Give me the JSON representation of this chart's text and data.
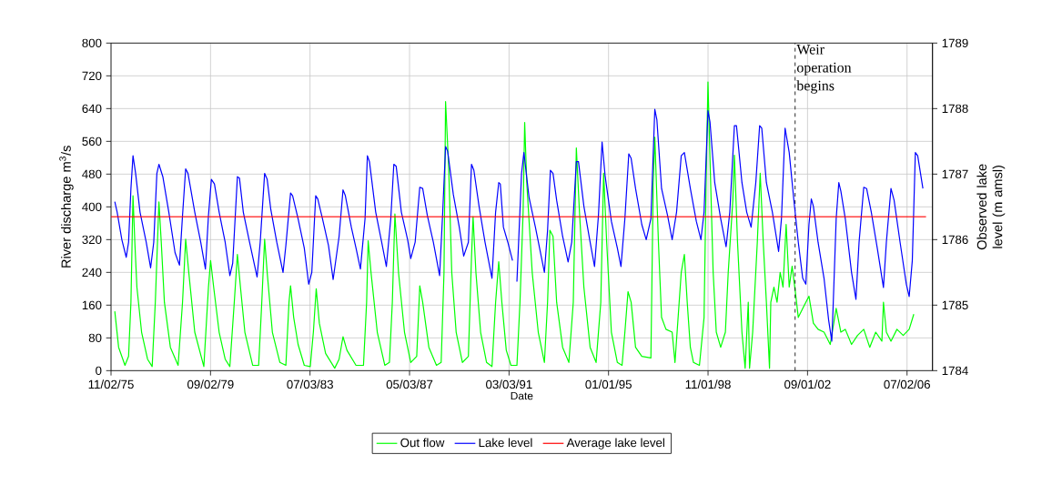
{
  "chart_data": {
    "type": "line",
    "xlabel": "Date",
    "ylabel": "River discharge m$^{3}$/s",
    "y2label": "Observed lake level (m amsl)",
    "xlim": [
      "1975-11-02",
      "2007-06-25"
    ],
    "xticks": [
      {
        "value": "1975-11-02",
        "label": "11/02/75"
      },
      {
        "value": "1979-09-02",
        "label": "09/02/79"
      },
      {
        "value": "1983-07-03",
        "label": "07/03/83"
      },
      {
        "value": "1987-05-03",
        "label": "05/03/87"
      },
      {
        "value": "1991-03-03",
        "label": "03/03/91"
      },
      {
        "value": "1995-01-01",
        "label": "01/01/95"
      },
      {
        "value": "1998-11-01",
        "label": "11/01/98"
      },
      {
        "value": "2002-09-01",
        "label": "09/01/02"
      },
      {
        "value": "2006-07-02",
        "label": "07/02/06"
      }
    ],
    "ylim": [
      0,
      800
    ],
    "yticks": [
      0,
      80,
      160,
      240,
      320,
      400,
      480,
      560,
      640,
      720,
      800
    ],
    "y2lim": [
      1784,
      1789
    ],
    "y2ticks": [
      1784,
      1785,
      1786,
      1787,
      1788,
      1789
    ],
    "grid": true,
    "legend": "bottom",
    "marker": "none",
    "line_style": "solid",
    "ref_lines": [
      {
        "axis": "x",
        "value": "2002-03-11",
        "label": "Weir operation begins",
        "color": "#000000",
        "line_style": "dashed"
      }
    ],
    "series": [
      {
        "name": "Out flow",
        "color": "#00ff00",
        "axis": "y",
        "x": [
          "1975-12-25",
          "1976-02-17",
          "1976-05-16",
          "1976-07-06",
          "1976-08-08",
          "1976-09-06",
          "1976-10-02",
          "1976-10-31",
          "1977-01-05",
          "1977-03-30",
          "1977-06-03",
          "1977-07-17",
          "1977-09-06",
          "1977-10-09",
          "1977-11-22",
          "1978-02-14",
          "1978-06-03",
          "1978-08-04",
          "1978-09-17",
          "1978-10-31",
          "1979-01-23",
          "1979-05-31",
          "1979-08-04",
          "1979-09-03",
          "1979-10-16",
          "1980-01-01",
          "1980-03-26",
          "1980-05-31",
          "1980-08-01",
          "1980-09-14",
          "1980-10-27",
          "1980-12-28",
          "1981-04-17",
          "1981-07-10",
          "1981-08-23",
          "1981-10-02",
          "1981-11-07",
          "1982-01-19",
          "1982-05-05",
          "1982-07-28",
          "1982-09-10",
          "1982-10-02",
          "1982-11-15",
          "1983-01-16",
          "1983-04-13",
          "1983-07-06",
          "1983-08-19",
          "1983-09-28",
          "1983-11-11",
          "1984-02-07",
          "1984-06-14",
          "1984-08-15",
          "1984-10-09",
          "1984-12-03",
          "1985-04-10",
          "1985-07-24",
          "1985-09-06",
          "1985-09-28",
          "1985-11-07",
          "1986-02-03",
          "1986-05-20",
          "1986-07-24",
          "1986-09-03",
          "1986-10-09",
          "1986-11-29",
          "1987-02-21",
          "1987-05-20",
          "1987-08-12",
          "1987-09-24",
          "1987-11-04",
          "1988-01-30",
          "1988-05-16",
          "1988-07-21",
          "1988-08-30",
          "1988-09-21",
          "1988-11-04",
          "1988-12-17",
          "1989-02-17",
          "1989-05-16",
          "1989-08-08",
          "1989-09-21",
          "1989-10-13",
          "1989-11-22",
          "1990-01-27",
          "1990-04-21",
          "1990-07-06",
          "1990-08-26",
          "1990-10-09",
          "1990-11-22",
          "1991-01-23",
          "1991-03-30",
          "1991-06-22",
          "1991-08-04",
          "1991-09-17",
          "1991-10-09",
          "1991-11-07",
          "1992-01-23",
          "1992-04-17",
          "1992-07-13",
          "1992-08-26",
          "1992-09-28",
          "1992-11-11",
          "1993-01-01",
          "1993-03-26",
          "1993-06-22",
          "1993-08-23",
          "1993-10-05",
          "1993-11-18",
          "1994-01-19",
          "1994-04-17",
          "1994-07-10",
          "1994-09-14",
          "1994-10-24",
          "1994-12-06",
          "1995-02-10",
          "1995-05-05",
          "1995-07-10",
          "1995-08-19",
          "1995-10-02",
          "1995-11-15",
          "1996-01-16",
          "1996-04-13",
          "1996-08-19",
          "1996-09-21",
          "1996-10-13",
          "1996-12-03",
          "1997-01-16",
          "1997-03-19",
          "1997-06-14",
          "1997-07-24",
          "1997-10-20",
          "1997-12-03",
          "1998-01-12",
          "1998-02-25",
          "1998-04-10",
          "1998-07-03",
          "1998-09-06",
          "1998-10-05",
          "1998-10-31",
          "1998-11-26",
          "1999-01-12",
          "1999-02-25",
          "1999-04-28",
          "1999-07-03",
          "1999-08-12",
          "1999-10-16",
          "1999-11-07",
          "1999-12-21",
          "2000-02-21",
          "2000-04-06",
          "2000-05-20",
          "2000-06-07",
          "2000-07-21",
          "2000-09-24",
          "2000-11-04",
          "2000-12-17",
          "2001-01-30",
          "2001-03-15",
          "2001-04-02",
          "2001-05-16",
          "2001-06-29",
          "2001-08-12",
          "2001-09-21",
          "2001-11-04",
          "2001-12-17",
          "2002-01-27",
          "2002-03-11",
          "2002-04-24",
          "2002-06-25",
          "2002-09-21",
          "2002-11-22",
          "2003-01-27",
          "2003-04-21",
          "2003-07-17",
          "2003-10-09",
          "2003-12-14",
          "2004-02-14",
          "2004-05-12",
          "2004-08-04",
          "2004-10-31",
          "2005-01-23",
          "2005-04-17",
          "2005-07-13",
          "2005-08-04",
          "2005-09-14",
          "2005-11-18",
          "2006-02-10",
          "2006-05-09",
          "2006-08-01",
          "2006-10-05"
        ],
        "values": [
          145,
          57,
          13,
          35,
          167,
          427,
          313,
          204,
          94,
          28,
          10,
          167,
          412,
          313,
          167,
          57,
          13,
          167,
          321,
          240,
          94,
          10,
          204,
          269,
          204,
          94,
          28,
          10,
          167,
          284,
          204,
          94,
          13,
          13,
          167,
          321,
          240,
          94,
          20,
          13,
          167,
          207,
          130,
          64,
          13,
          10,
          94,
          200,
          116,
          42,
          6,
          28,
          83,
          50,
          13,
          13,
          167,
          317,
          240,
          94,
          13,
          20,
          167,
          383,
          240,
          94,
          20,
          35,
          207,
          167,
          57,
          13,
          20,
          240,
          657,
          496,
          240,
          94,
          20,
          35,
          277,
          376,
          240,
          94,
          20,
          10,
          167,
          266,
          167,
          50,
          13,
          13,
          167,
          387,
          606,
          460,
          240,
          94,
          20,
          167,
          343,
          328,
          167,
          57,
          20,
          167,
          544,
          387,
          204,
          57,
          20,
          167,
          482,
          313,
          94,
          20,
          13,
          94,
          193,
          167,
          57,
          35,
          31,
          460,
          570,
          313,
          130,
          101,
          94,
          20,
          240,
          284,
          167,
          57,
          20,
          13,
          130,
          460,
          705,
          533,
          240,
          94,
          57,
          94,
          240,
          416,
          526,
          313,
          94,
          6,
          167,
          6,
          94,
          313,
          482,
          313,
          167,
          6,
          167,
          204,
          167,
          240,
          204,
          357,
          204,
          255,
          196,
          130,
          152,
          182,
          116,
          101,
          94,
          64,
          152,
          94,
          101,
          64,
          86,
          101,
          57,
          94,
          72,
          167,
          94,
          72,
          101,
          86,
          101,
          138
        ]
      },
      {
        "name": "Lake level",
        "color": "#0000ff",
        "axis": "y2",
        "x": [
          "1975-12-25",
          "1976-01-27",
          "1976-04-02",
          "1976-06-03",
          "1976-07-06",
          "1976-08-08",
          "1976-09-06",
          "1976-10-13",
          "1976-12-14",
          "1977-03-11",
          "1977-05-12",
          "1977-06-25",
          "1977-08-08",
          "1977-09-06",
          "1977-10-31",
          "1978-01-23",
          "1978-04-21",
          "1978-06-22",
          "1978-08-04",
          "1978-09-17",
          "1978-10-20",
          "1979-01-23",
          "1979-04-17",
          "1979-06-22",
          "1979-08-04",
          "1979-09-14",
          "1979-10-27",
          "1980-01-01",
          "1980-03-26",
          "1980-05-31",
          "1980-07-10",
          "1980-09-14",
          "1980-10-13",
          "1980-12-06",
          "1981-03-04",
          "1981-06-18",
          "1981-08-01",
          "1981-10-02",
          "1981-11-07",
          "1981-12-28",
          "1982-03-22",
          "1982-06-18",
          "1982-07-28",
          "1982-10-02",
          "1982-10-31",
          "1983-01-16",
          "1983-04-13",
          "1983-06-14",
          "1983-07-28",
          "1983-09-21",
          "1983-10-20",
          "1983-12-25",
          "1984-03-19",
          "1984-05-23",
          "1984-08-15",
          "1984-10-09",
          "1984-11-11",
          "1985-02-03",
          "1985-04-10",
          "1985-06-11",
          "1985-08-15",
          "1985-09-17",
          "1985-10-16",
          "1986-01-12",
          "1986-04-06",
          "1986-06-11",
          "1986-08-12",
          "1986-09-24",
          "1986-10-27",
          "1987-01-08",
          "1987-04-06",
          "1987-05-20",
          "1987-07-21",
          "1987-09-24",
          "1987-11-04",
          "1988-01-08",
          "1988-04-02",
          "1988-06-29",
          "1988-08-12",
          "1988-09-21",
          "1988-10-20",
          "1989-01-08",
          "1989-04-02",
          "1989-06-03",
          "1989-08-08",
          "1989-09-21",
          "1989-10-24",
          "1990-01-05",
          "1990-03-30",
          "1990-07-06",
          "1990-08-26",
          "1990-10-09",
          "1990-10-31",
          "1990-12-14",
          "1991-02-14",
          "1991-04-21",
          "1991-05-20",
          "1991-06-22",
          "1991-08-26",
          "1991-09-28",
          "1991-12-10",
          "1992-03-08",
          "1992-07-13",
          "1992-08-26",
          "1992-10-05",
          "1992-11-11",
          "1993-01-01",
          "1993-03-26",
          "1993-06-11",
          "1993-08-01",
          "1993-10-05",
          "1993-11-04",
          "1994-01-19",
          "1994-04-17",
          "1994-06-18",
          "1994-08-12",
          "1994-10-02",
          "1994-11-15",
          "1995-02-10",
          "1995-05-05",
          "1995-06-25",
          "1995-08-19",
          "1995-10-13",
          "1995-11-15",
          "1996-01-16",
          "1996-04-13",
          "1996-06-14",
          "1996-08-19",
          "1996-10-13",
          "1996-11-11",
          "1997-01-16",
          "1997-04-10",
          "1997-06-14",
          "1997-08-15",
          "1997-10-20",
          "1997-12-03",
          "1998-02-25",
          "1998-05-20",
          "1998-07-24",
          "1998-09-06",
          "1998-10-31",
          "1998-11-29",
          "1999-02-03",
          "1999-04-28",
          "1999-07-13",
          "1999-09-03",
          "1999-11-07",
          "1999-12-06",
          "2000-02-21",
          "2000-04-28",
          "2000-06-29",
          "2000-09-03",
          "2000-10-27",
          "2000-11-26",
          "2001-01-30",
          "2001-04-24",
          "2001-07-21",
          "2001-08-30",
          "2001-10-20",
          "2001-12-17",
          "2002-02-17",
          "2002-04-24",
          "2002-06-25",
          "2002-08-08",
          "2002-09-21",
          "2002-10-24",
          "2002-11-22",
          "2003-01-27",
          "2003-04-21",
          "2003-06-25",
          "2003-08-08",
          "2003-08-26",
          "2003-10-09",
          "2003-11-15",
          "2003-12-14",
          "2004-02-14",
          "2004-05-12",
          "2004-07-13",
          "2004-08-26",
          "2004-10-31",
          "2004-12-10",
          "2005-02-14",
          "2005-05-09",
          "2005-08-04",
          "2005-09-14",
          "2005-11-18",
          "2006-01-01",
          "2006-03-26",
          "2006-06-22",
          "2006-08-01",
          "2006-09-14",
          "2006-10-27",
          "2006-11-29",
          "2007-02-10"
        ],
        "values": [
          1786.58,
          1786.42,
          1786.0,
          1785.73,
          1785.96,
          1786.78,
          1787.28,
          1787.01,
          1786.42,
          1785.96,
          1785.57,
          1785.96,
          1787.01,
          1787.15,
          1786.96,
          1786.42,
          1785.8,
          1785.61,
          1786.37,
          1787.08,
          1787.01,
          1786.42,
          1785.96,
          1785.55,
          1786.37,
          1786.92,
          1786.85,
          1786.42,
          1785.96,
          1785.45,
          1785.64,
          1786.96,
          1786.94,
          1786.42,
          1785.96,
          1785.43,
          1785.96,
          1787.01,
          1786.92,
          1786.46,
          1785.96,
          1785.5,
          1785.91,
          1786.71,
          1786.67,
          1786.32,
          1785.87,
          1785.32,
          1785.5,
          1786.67,
          1786.62,
          1786.32,
          1785.91,
          1785.39,
          1786.05,
          1786.76,
          1786.67,
          1786.19,
          1785.87,
          1785.55,
          1786.32,
          1787.28,
          1787.19,
          1786.42,
          1785.96,
          1785.59,
          1786.32,
          1787.15,
          1787.12,
          1786.42,
          1786.0,
          1785.71,
          1785.96,
          1786.8,
          1786.78,
          1786.37,
          1785.96,
          1785.45,
          1786.42,
          1787.42,
          1787.35,
          1786.69,
          1786.19,
          1785.75,
          1785.96,
          1787.15,
          1787.06,
          1786.51,
          1785.96,
          1785.41,
          1786.42,
          1786.87,
          1786.85,
          1786.19,
          1785.96,
          1785.68,
          null,
          1785.36,
          1787.01,
          1787.33,
          1786.64,
          1786.19,
          1785.5,
          1786.14,
          1787.06,
          1787.01,
          1786.6,
          1786.05,
          1785.66,
          1785.96,
          1787.19,
          1787.19,
          1786.51,
          1785.96,
          1785.59,
          1786.37,
          1787.49,
          1786.96,
          1786.28,
          1785.87,
          1785.59,
          1786.32,
          1787.31,
          1787.24,
          1786.78,
          1786.23,
          1786.0,
          1786.32,
          1787.99,
          1787.83,
          1786.78,
          1786.37,
          1786.0,
          1786.42,
          1787.28,
          1787.33,
          1786.78,
          1786.28,
          1786.0,
          1786.42,
          1787.97,
          1787.79,
          1786.87,
          1786.32,
          1785.89,
          1786.42,
          1787.74,
          1787.74,
          1786.87,
          1786.42,
          1786.19,
          1786.87,
          1787.74,
          1787.7,
          1786.87,
          1786.42,
          1785.82,
          1786.32,
          1787.7,
          1787.33,
          1786.64,
          1785.96,
          1785.41,
          1785.32,
          1786.23,
          1786.62,
          1786.51,
          1785.96,
          1785.41,
          1784.77,
          1784.45,
          1784.95,
          1786.32,
          1786.87,
          1786.74,
          1786.32,
          1785.5,
          1785.09,
          1785.96,
          1786.8,
          1786.78,
          1786.42,
          1785.87,
          1785.27,
          1785.96,
          1786.78,
          1786.6,
          1785.96,
          1785.32,
          1785.13,
          1785.68,
          1787.33,
          1787.28,
          1786.78
        ]
      },
      {
        "name": "Average lake level",
        "color": "#ff0000",
        "axis": "y2",
        "x": [
          "1975-11-02",
          "2007-03-26"
        ],
        "values": [
          1786.35,
          1786.35
        ]
      }
    ]
  }
}
